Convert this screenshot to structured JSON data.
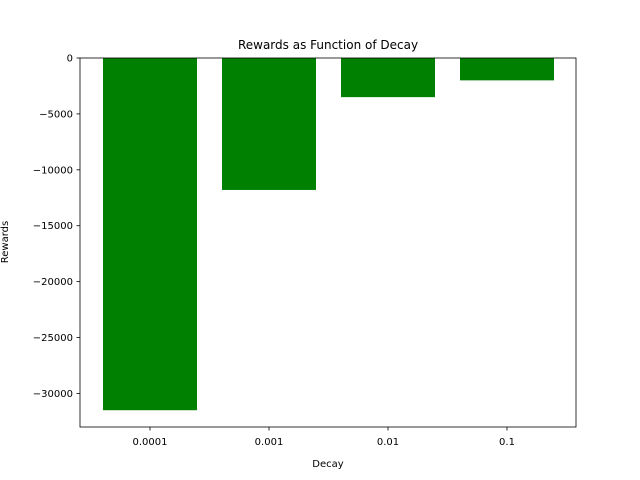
{
  "chart_data": {
    "type": "bar",
    "title": "Rewards as Function of Decay",
    "xlabel": "Decay",
    "ylabel": "Rewards",
    "categories": [
      "0.0001",
      "0.001",
      "0.01",
      "0.1"
    ],
    "values": [
      -31500,
      -11800,
      -3500,
      -2000
    ],
    "ylim": [
      -33000,
      0
    ],
    "yticks": [
      0,
      -5000,
      -10000,
      -15000,
      -20000,
      -25000,
      -30000
    ],
    "ytick_labels": [
      "0",
      "−5000",
      "−10000",
      "−15000",
      "−20000",
      "−25000",
      "−30000"
    ],
    "bar_color": "#008000",
    "grid": false,
    "legend": "none"
  }
}
